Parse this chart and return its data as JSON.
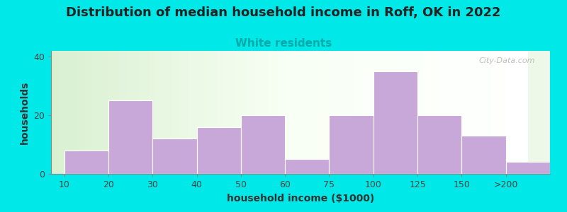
{
  "title": "Distribution of median household income in Roff, OK in 2022",
  "subtitle": "White residents",
  "xlabel": "household income ($1000)",
  "ylabel": "households",
  "bar_labels": [
    "10",
    "20",
    "30",
    "40",
    "50",
    "60",
    "75",
    "100",
    "125",
    "150",
    ">200"
  ],
  "bar_values": [
    8,
    25,
    12,
    16,
    20,
    5,
    20,
    35,
    20,
    13,
    4
  ],
  "bin_edges": [
    0,
    1,
    2,
    3,
    4,
    5,
    6,
    7,
    8,
    9,
    10,
    11
  ],
  "bar_color": "#c8a8d8",
  "bar_edgecolor": "#ffffff",
  "ylim": [
    0,
    42
  ],
  "yticks": [
    0,
    20,
    40
  ],
  "background_color": "#00e8e8",
  "plot_bg_color": "#eef8e8",
  "title_fontsize": 13,
  "subtitle_fontsize": 11,
  "subtitle_color": "#00aaaa",
  "axis_label_fontsize": 10,
  "tick_fontsize": 9,
  "watermark": "City-Data.com"
}
